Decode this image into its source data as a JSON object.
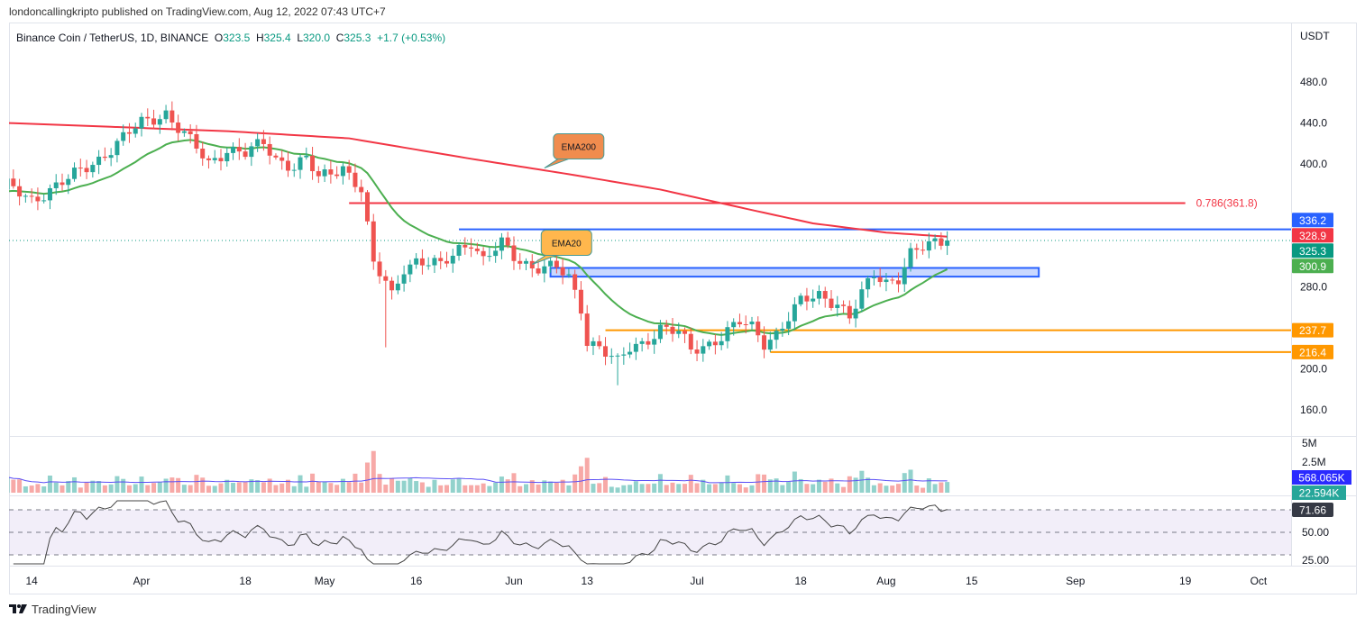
{
  "header": {
    "published": "londoncallingkripto published on TradingView.com, Aug 12, 2022 07:43 UTC+7"
  },
  "legend": {
    "symbol": "Binance Coin / TetherUS, 1D, BINANCE",
    "o_label": "O",
    "o": "323.5",
    "h_label": "H",
    "h": "325.4",
    "l_label": "L",
    "l": "320.0",
    "c_label": "C",
    "c": "325.3",
    "change": "+1.7 (+0.53%)"
  },
  "brand": "TradingView",
  "colors": {
    "up": "#26a69a",
    "down": "#ef5350",
    "ema200": "#f23645",
    "ema20": "#4caf50",
    "blue": "#2962ff",
    "orange": "#ff9800"
  },
  "chart_data": {
    "type": "candlestick",
    "currency": "USDT",
    "y_ticks": [
      480,
      440,
      400,
      280,
      200,
      160
    ],
    "ylim": [
      150,
      505
    ],
    "x_ticks": [
      {
        "label": "14",
        "date": "2022-03-14"
      },
      {
        "label": "Apr",
        "date": "2022-04-01"
      },
      {
        "label": "18",
        "date": "2022-04-18"
      },
      {
        "label": "May",
        "date": "2022-05-01"
      },
      {
        "label": "16",
        "date": "2022-05-16"
      },
      {
        "label": "Jun",
        "date": "2022-06-01"
      },
      {
        "label": "13",
        "date": "2022-06-13"
      },
      {
        "label": "Jul",
        "date": "2022-07-01"
      },
      {
        "label": "18",
        "date": "2022-07-18"
      },
      {
        "label": "Aug",
        "date": "2022-08-01"
      },
      {
        "label": "15",
        "date": "2022-08-15"
      },
      {
        "label": "Sep",
        "date": "2022-09-01"
      },
      {
        "label": "19",
        "date": "2022-09-19"
      },
      {
        "label": "Oct",
        "date": "2022-10-01"
      }
    ],
    "close_anchors": [
      [
        "2022-03-10",
        378
      ],
      [
        "2022-03-14",
        365
      ],
      [
        "2022-03-20",
        385
      ],
      [
        "2022-03-25",
        405
      ],
      [
        "2022-03-28",
        420
      ],
      [
        "2022-04-01",
        440
      ],
      [
        "2022-04-05",
        450
      ],
      [
        "2022-04-07",
        435
      ],
      [
        "2022-04-10",
        415
      ],
      [
        "2022-04-12",
        400
      ],
      [
        "2022-04-15",
        415
      ],
      [
        "2022-04-18",
        410
      ],
      [
        "2022-04-21",
        420
      ],
      [
        "2022-04-23",
        405
      ],
      [
        "2022-04-26",
        398
      ],
      [
        "2022-04-28",
        405
      ],
      [
        "2022-04-30",
        385
      ],
      [
        "2022-05-04",
        398
      ],
      [
        "2022-05-07",
        375
      ],
      [
        "2022-05-09",
        300
      ],
      [
        "2022-05-11",
        285
      ],
      [
        "2022-05-12",
        272
      ],
      [
        "2022-05-14",
        300
      ],
      [
        "2022-05-16",
        305
      ],
      [
        "2022-05-20",
        300
      ],
      [
        "2022-05-23",
        318
      ],
      [
        "2022-05-25",
        325
      ],
      [
        "2022-05-27",
        305
      ],
      [
        "2022-05-30",
        322
      ],
      [
        "2022-06-01",
        310
      ],
      [
        "2022-06-04",
        300
      ],
      [
        "2022-06-08",
        298
      ],
      [
        "2022-06-10",
        288
      ],
      [
        "2022-06-12",
        260
      ],
      [
        "2022-06-13",
        228
      ],
      [
        "2022-06-15",
        222
      ],
      [
        "2022-06-18",
        205
      ],
      [
        "2022-06-20",
        220
      ],
      [
        "2022-06-22",
        225
      ],
      [
        "2022-06-25",
        240
      ],
      [
        "2022-06-28",
        235
      ],
      [
        "2022-06-30",
        218
      ],
      [
        "2022-07-03",
        225
      ],
      [
        "2022-07-05",
        232
      ],
      [
        "2022-07-08",
        245
      ],
      [
        "2022-07-10",
        240
      ],
      [
        "2022-07-12",
        226
      ],
      [
        "2022-07-14",
        235
      ],
      [
        "2022-07-16",
        250
      ],
      [
        "2022-07-18",
        265
      ],
      [
        "2022-07-21",
        272
      ],
      [
        "2022-07-24",
        265
      ],
      [
        "2022-07-26",
        250
      ],
      [
        "2022-07-28",
        272
      ],
      [
        "2022-07-30",
        292
      ],
      [
        "2022-08-01",
        285
      ],
      [
        "2022-08-03",
        290
      ],
      [
        "2022-08-05",
        312
      ],
      [
        "2022-08-08",
        320
      ],
      [
        "2022-08-10",
        324
      ],
      [
        "2022-08-11",
        325.3
      ]
    ],
    "wicks": [
      [
        "2022-05-11",
        221
      ],
      [
        "2022-06-18",
        184
      ]
    ],
    "ema200_anchors": [
      [
        "2022-03-10",
        440
      ],
      [
        "2022-04-15",
        432
      ],
      [
        "2022-05-05",
        425
      ],
      [
        "2022-05-25",
        405
      ],
      [
        "2022-06-10",
        390
      ],
      [
        "2022-06-25",
        375
      ],
      [
        "2022-07-10",
        355
      ],
      [
        "2022-07-20",
        342
      ],
      [
        "2022-08-01",
        333
      ],
      [
        "2022-08-11",
        329
      ]
    ],
    "levels": [
      {
        "name": "fib-0786",
        "label": "0.786(361.8)",
        "price": 361.8,
        "from": "2022-05-05",
        "to": "2022-09-19",
        "color": "#f23645"
      },
      {
        "name": "resistance",
        "price": 336.2,
        "from": "2022-05-23",
        "to": "2022-10-10",
        "color": "#2962ff"
      },
      {
        "name": "support-orange-1",
        "price": 237.7,
        "from": "2022-06-16",
        "to": "2022-10-10",
        "color": "#ff9800"
      },
      {
        "name": "support-orange-2",
        "price": 216.4,
        "from": "2022-07-13",
        "to": "2022-10-10",
        "color": "#ff9800"
      }
    ],
    "zone": {
      "top": 298.5,
      "bottom": 290,
      "from": "2022-06-07",
      "to": "2022-08-26"
    },
    "price_labels": [
      {
        "text": "336.2",
        "price": 336.2,
        "color": "#2962ff"
      },
      {
        "text": "328.9",
        "price": 328.9,
        "color": "#f23645"
      },
      {
        "text": "325.3",
        "price": 325.3,
        "color": "#089981"
      },
      {
        "text": "300.9",
        "price": 300.9,
        "color": "#4caf50"
      },
      {
        "text": "237.7",
        "price": 237.7,
        "color": "#ff9800"
      },
      {
        "text": "216.4",
        "price": 216.4,
        "color": "#ff9800"
      }
    ],
    "callouts": [
      {
        "text": "EMA200",
        "date": "2022-06-06",
        "price": 396,
        "color": "#f08c4e"
      },
      {
        "text": "EMA20",
        "date": "2022-06-04",
        "price": 302,
        "color": "#ffb74d"
      }
    ],
    "volume": {
      "ticks": [
        "5M",
        "2.5M"
      ],
      "ma_label": "568.065K",
      "last_label": "22.594K"
    },
    "rsi": {
      "ticks": [
        "50.00",
        "25.00"
      ],
      "value_label": "71.66",
      "upper": 70,
      "lower": 30
    }
  }
}
